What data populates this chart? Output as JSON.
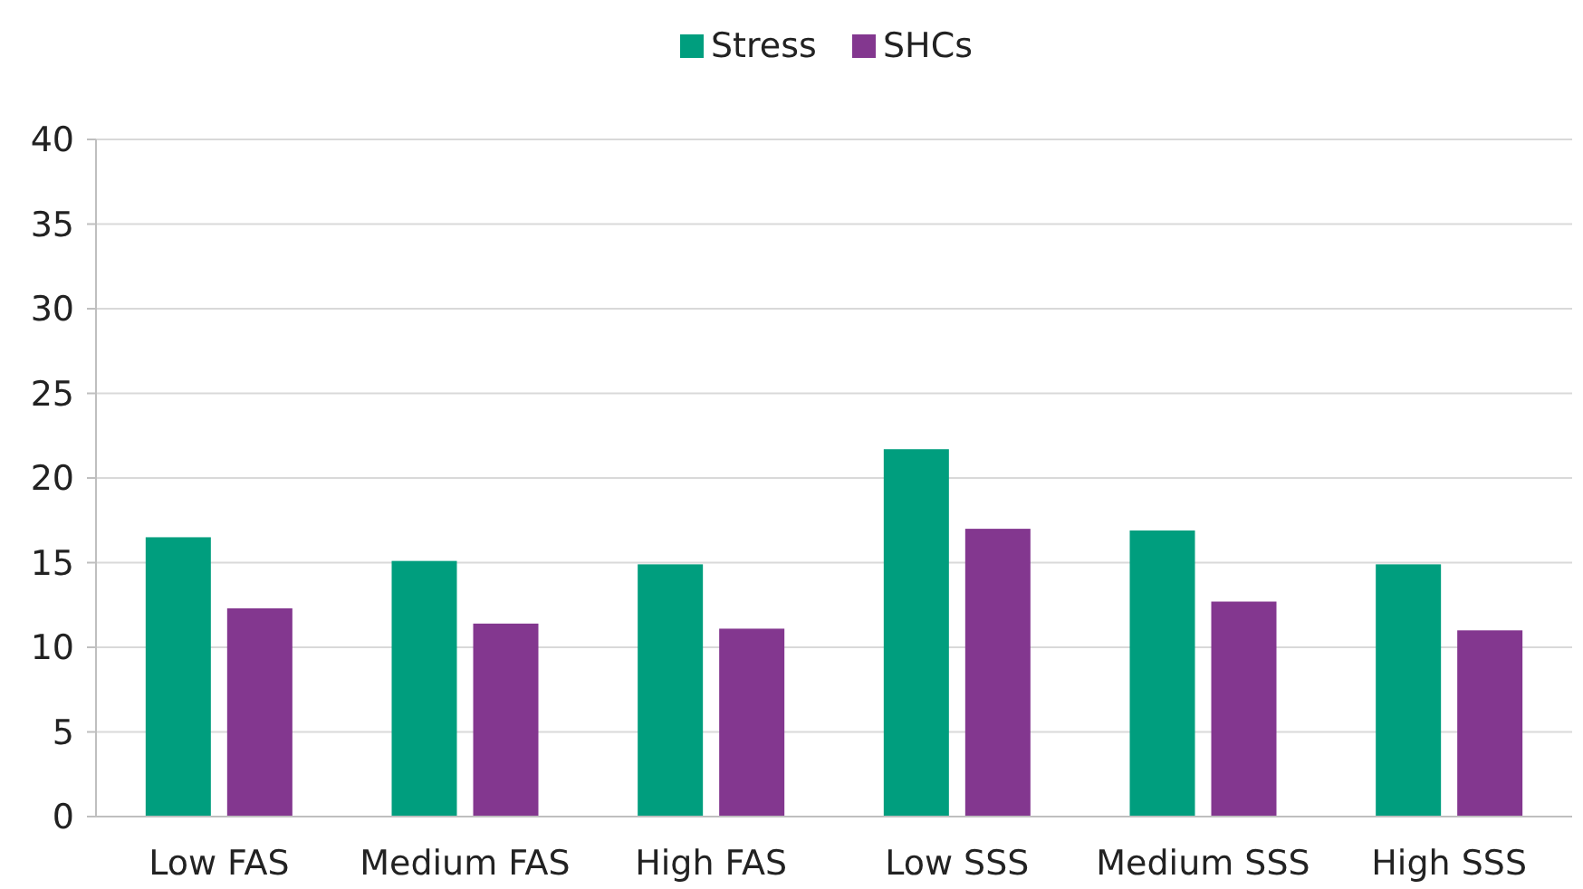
{
  "chart_data": {
    "type": "bar",
    "categories": [
      "Low FAS",
      "Medium FAS",
      "High FAS",
      "Low SSS",
      "Medium SSS",
      "High SSS"
    ],
    "series": [
      {
        "name": "Stress",
        "color": "#009e7e",
        "values": [
          16.5,
          15.1,
          14.9,
          21.7,
          16.9,
          14.9
        ]
      },
      {
        "name": "SHCs",
        "color": "#83378f",
        "values": [
          12.3,
          11.4,
          11.1,
          17.0,
          12.7,
          11.0
        ]
      }
    ],
    "ylim": [
      0,
      40
    ],
    "yticks": [
      0,
      5,
      10,
      15,
      20,
      25,
      30,
      35,
      40
    ],
    "grid": "y",
    "legend": "top"
  }
}
